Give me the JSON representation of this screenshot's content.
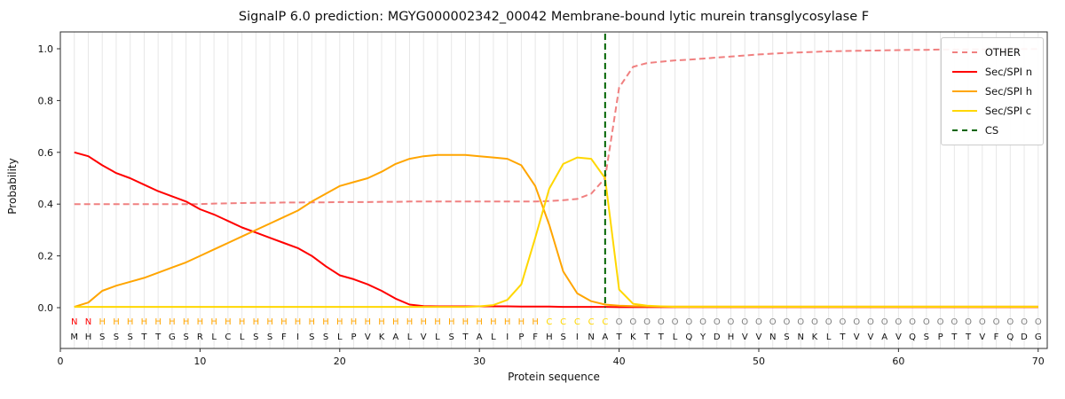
{
  "chart_data": {
    "type": "line",
    "title": "SignalP 6.0 prediction: MGYG000002342_00042 Membrane-bound lytic murein transglycosylase F",
    "xlabel": "Protein sequence",
    "ylabel": "Probability",
    "xlim": [
      0,
      70.65
    ],
    "ylim": [
      0,
      1
    ],
    "xticks": [
      0,
      10,
      20,
      30,
      40,
      50,
      60,
      70
    ],
    "yticks": [
      0.0,
      0.2,
      0.4,
      0.6,
      0.8,
      1.0
    ],
    "grid": "vertical",
    "legend_position": "upper-right",
    "x": [
      1,
      2,
      3,
      4,
      5,
      6,
      7,
      8,
      9,
      10,
      11,
      12,
      13,
      14,
      15,
      16,
      17,
      18,
      19,
      20,
      21,
      22,
      23,
      24,
      25,
      26,
      27,
      28,
      29,
      30,
      31,
      32,
      33,
      34,
      35,
      36,
      37,
      38,
      39,
      40,
      41,
      42,
      43,
      44,
      45,
      46,
      47,
      48,
      49,
      50,
      51,
      52,
      53,
      54,
      55,
      56,
      57,
      58,
      59,
      60,
      61,
      62,
      63,
      64,
      65,
      66,
      67,
      68,
      69,
      70
    ],
    "series": [
      {
        "name": "OTHER",
        "color": "#f08080",
        "dash": true,
        "values": [
          0.4,
          0.4,
          0.4,
          0.4,
          0.4,
          0.4,
          0.4,
          0.4,
          0.4,
          0.4,
          0.402,
          0.403,
          0.404,
          0.405,
          0.405,
          0.406,
          0.406,
          0.407,
          0.407,
          0.408,
          0.408,
          0.408,
          0.409,
          0.409,
          0.41,
          0.41,
          0.41,
          0.41,
          0.41,
          0.41,
          0.41,
          0.41,
          0.41,
          0.41,
          0.412,
          0.415,
          0.42,
          0.44,
          0.5,
          0.85,
          0.93,
          0.945,
          0.95,
          0.955,
          0.958,
          0.962,
          0.966,
          0.97,
          0.974,
          0.978,
          0.981,
          0.984,
          0.986,
          0.988,
          0.99,
          0.991,
          0.992,
          0.993,
          0.994,
          0.995,
          0.996,
          0.996,
          0.997,
          0.997,
          0.998,
          0.998,
          0.998,
          0.999,
          0.999,
          0.999
        ]
      },
      {
        "name": "Sec/SPI n",
        "color": "#ff0000",
        "dash": false,
        "values": [
          0.6,
          0.585,
          0.55,
          0.52,
          0.5,
          0.475,
          0.45,
          0.43,
          0.41,
          0.38,
          0.36,
          0.335,
          0.31,
          0.29,
          0.27,
          0.25,
          0.23,
          0.2,
          0.16,
          0.125,
          0.11,
          0.09,
          0.065,
          0.035,
          0.012,
          0.006,
          0.005,
          0.005,
          0.005,
          0.005,
          0.005,
          0.005,
          0.004,
          0.004,
          0.004,
          0.003,
          0.003,
          0.003,
          0.003,
          0.002,
          0.002,
          0.002,
          0.002,
          0.002,
          0.002,
          0.002,
          0.002,
          0.002,
          0.002,
          0.002,
          0.002,
          0.002,
          0.002,
          0.002,
          0.002,
          0.002,
          0.002,
          0.002,
          0.002,
          0.002,
          0.002,
          0.002,
          0.002,
          0.002,
          0.002,
          0.002,
          0.002,
          0.002,
          0.002,
          0.002
        ]
      },
      {
        "name": "Sec/SPI h",
        "color": "#ffa500",
        "dash": false,
        "values": [
          0.003,
          0.02,
          0.065,
          0.085,
          0.1,
          0.115,
          0.135,
          0.155,
          0.175,
          0.2,
          0.225,
          0.25,
          0.275,
          0.3,
          0.325,
          0.35,
          0.375,
          0.41,
          0.44,
          0.47,
          0.485,
          0.5,
          0.525,
          0.555,
          0.575,
          0.585,
          0.59,
          0.59,
          0.59,
          0.585,
          0.58,
          0.575,
          0.55,
          0.47,
          0.32,
          0.14,
          0.055,
          0.025,
          0.012,
          0.008,
          0.006,
          0.005,
          0.004,
          0.004,
          0.004,
          0.004,
          0.004,
          0.004,
          0.004,
          0.004,
          0.004,
          0.004,
          0.004,
          0.004,
          0.004,
          0.004,
          0.004,
          0.004,
          0.004,
          0.004,
          0.004,
          0.004,
          0.004,
          0.004,
          0.004,
          0.004,
          0.004,
          0.004,
          0.004,
          0.004
        ]
      },
      {
        "name": "Sec/SPI c",
        "color": "#ffd700",
        "dash": false,
        "values": [
          0.003,
          0.003,
          0.003,
          0.003,
          0.003,
          0.003,
          0.003,
          0.003,
          0.003,
          0.003,
          0.003,
          0.003,
          0.003,
          0.003,
          0.003,
          0.003,
          0.003,
          0.003,
          0.003,
          0.003,
          0.003,
          0.003,
          0.003,
          0.003,
          0.003,
          0.003,
          0.003,
          0.003,
          0.003,
          0.005,
          0.01,
          0.03,
          0.09,
          0.27,
          0.46,
          0.555,
          0.58,
          0.575,
          0.5,
          0.07,
          0.015,
          0.008,
          0.005,
          0.003,
          0.003,
          0.003,
          0.003,
          0.003,
          0.003,
          0.003,
          0.003,
          0.003,
          0.003,
          0.003,
          0.003,
          0.003,
          0.003,
          0.003,
          0.003,
          0.003,
          0.003,
          0.003,
          0.003,
          0.003,
          0.003,
          0.003,
          0.003,
          0.003,
          0.003,
          0.003
        ]
      }
    ],
    "cs_line": {
      "name": "CS",
      "x": 39,
      "color": "#006400",
      "dash": true
    },
    "annotation": "NNHHHHHHHHHHHHHHHHHHHHHHHHHHHHHHHHCCCCCOOOOOOOOOOOOOOOOOOOOOOOOOOOOOOO",
    "annotation_colors": {
      "N": "#ff0000",
      "H": "#ffa500",
      "C": "#ffd700",
      "O": "#808080"
    },
    "sequence": "MHSSSTTGSRLCLSSFISSLPVKALVLSTALIPFHSINATKTTLQYDHVVNSNKLTVVAVQSPTTVFQDG"
  }
}
